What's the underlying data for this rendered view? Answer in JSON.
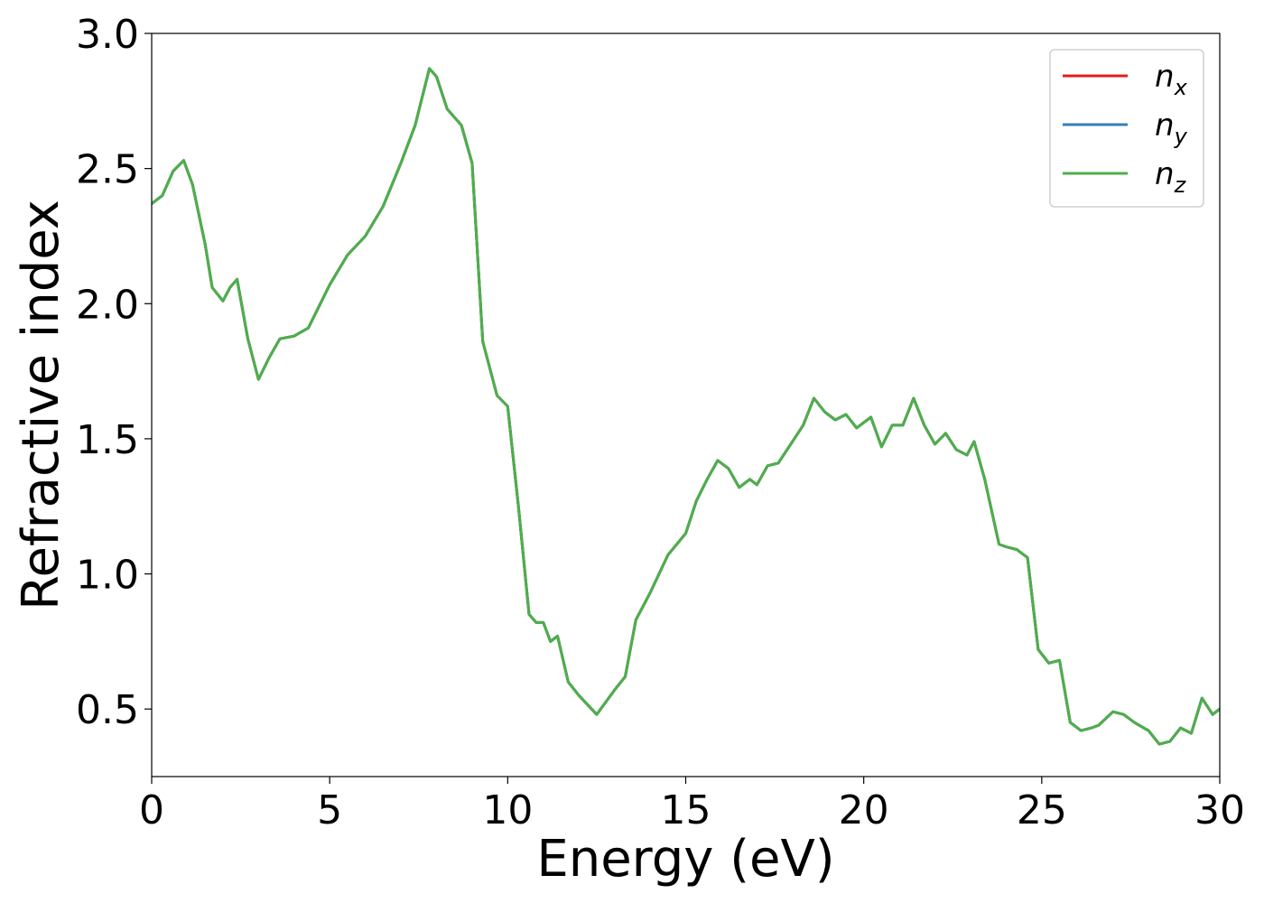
{
  "chart_data": {
    "type": "line",
    "title": "",
    "xlabel": "Energy (eV)",
    "ylabel": "Refractive index",
    "xlim": [
      0,
      30
    ],
    "ylim": [
      0.25,
      3.0
    ],
    "xticks": [
      0,
      5,
      10,
      15,
      20,
      25,
      30
    ],
    "xtick_labels": [
      "0",
      "5",
      "10",
      "15",
      "20",
      "25",
      "30"
    ],
    "yticks": [
      0.5,
      1.0,
      1.5,
      2.0,
      2.5,
      3.0
    ],
    "ytick_labels": [
      "0.5",
      "1.0",
      "1.5",
      "2.0",
      "2.5",
      "3.0"
    ],
    "grid": false,
    "legend_position": "top-right",
    "x": [
      0,
      0.3,
      0.6,
      0.9,
      1.15,
      1.5,
      1.7,
      2.0,
      2.2,
      2.4,
      2.7,
      3.0,
      3.3,
      3.6,
      4.0,
      4.4,
      5.0,
      5.5,
      6.0,
      6.5,
      7.0,
      7.4,
      7.8,
      8.0,
      8.3,
      8.7,
      9.0,
      9.3,
      9.7,
      10.0,
      10.3,
      10.6,
      10.8,
      11.0,
      11.2,
      11.4,
      11.7,
      12.0,
      12.5,
      13.0,
      13.3,
      13.6,
      14.0,
      14.5,
      15.0,
      15.3,
      15.6,
      15.9,
      16.2,
      16.5,
      16.8,
      17.0,
      17.3,
      17.6,
      18.0,
      18.3,
      18.6,
      18.9,
      19.2,
      19.5,
      19.8,
      20.2,
      20.5,
      20.8,
      21.1,
      21.4,
      21.7,
      22.0,
      22.3,
      22.6,
      22.9,
      23.1,
      23.4,
      23.8,
      24.0,
      24.3,
      24.6,
      24.9,
      25.2,
      25.5,
      25.8,
      26.1,
      26.4,
      26.6,
      27.0,
      27.3,
      27.6,
      28.0,
      28.3,
      28.6,
      28.9,
      29.2,
      29.5,
      29.8,
      30.0
    ],
    "series": [
      {
        "name": "n_x",
        "color": "#e41a1c",
        "values": [
          2.37,
          2.4,
          2.49,
          2.53,
          2.44,
          2.22,
          2.06,
          2.01,
          2.06,
          2.09,
          1.87,
          1.72,
          1.8,
          1.87,
          1.88,
          1.91,
          2.07,
          2.18,
          2.25,
          2.36,
          2.52,
          2.66,
          2.87,
          2.84,
          2.72,
          2.66,
          2.52,
          1.86,
          1.66,
          1.62,
          1.25,
          0.85,
          0.82,
          0.82,
          0.75,
          0.77,
          0.6,
          0.55,
          0.48,
          0.57,
          0.62,
          0.83,
          0.93,
          1.07,
          1.15,
          1.27,
          1.35,
          1.42,
          1.39,
          1.32,
          1.35,
          1.33,
          1.4,
          1.41,
          1.49,
          1.55,
          1.65,
          1.6,
          1.57,
          1.59,
          1.54,
          1.58,
          1.47,
          1.55,
          1.55,
          1.65,
          1.55,
          1.48,
          1.52,
          1.46,
          1.44,
          1.49,
          1.35,
          1.11,
          1.1,
          1.09,
          1.06,
          0.72,
          0.67,
          0.68,
          0.45,
          0.42,
          0.43,
          0.44,
          0.49,
          0.48,
          0.45,
          0.42,
          0.37,
          0.38,
          0.43,
          0.41,
          0.54,
          0.48,
          0.5
        ]
      },
      {
        "name": "n_y",
        "color": "#377eb8",
        "values": [
          2.37,
          2.4,
          2.49,
          2.53,
          2.44,
          2.22,
          2.06,
          2.01,
          2.06,
          2.09,
          1.87,
          1.72,
          1.8,
          1.87,
          1.88,
          1.91,
          2.07,
          2.18,
          2.25,
          2.36,
          2.52,
          2.66,
          2.87,
          2.84,
          2.72,
          2.66,
          2.52,
          1.86,
          1.66,
          1.62,
          1.25,
          0.85,
          0.82,
          0.82,
          0.75,
          0.77,
          0.6,
          0.55,
          0.48,
          0.57,
          0.62,
          0.83,
          0.93,
          1.07,
          1.15,
          1.27,
          1.35,
          1.42,
          1.39,
          1.32,
          1.35,
          1.33,
          1.4,
          1.41,
          1.49,
          1.55,
          1.65,
          1.6,
          1.57,
          1.59,
          1.54,
          1.58,
          1.47,
          1.55,
          1.55,
          1.65,
          1.55,
          1.48,
          1.52,
          1.46,
          1.44,
          1.49,
          1.35,
          1.11,
          1.1,
          1.09,
          1.06,
          0.72,
          0.67,
          0.68,
          0.45,
          0.42,
          0.43,
          0.44,
          0.49,
          0.48,
          0.45,
          0.42,
          0.37,
          0.38,
          0.43,
          0.41,
          0.54,
          0.48,
          0.5
        ]
      },
      {
        "name": "n_z",
        "color": "#4daf4a",
        "values": [
          2.37,
          2.4,
          2.49,
          2.53,
          2.44,
          2.22,
          2.06,
          2.01,
          2.06,
          2.09,
          1.87,
          1.72,
          1.8,
          1.87,
          1.88,
          1.91,
          2.07,
          2.18,
          2.25,
          2.36,
          2.52,
          2.66,
          2.87,
          2.84,
          2.72,
          2.66,
          2.52,
          1.86,
          1.66,
          1.62,
          1.25,
          0.85,
          0.82,
          0.82,
          0.75,
          0.77,
          0.6,
          0.55,
          0.48,
          0.57,
          0.62,
          0.83,
          0.93,
          1.07,
          1.15,
          1.27,
          1.35,
          1.42,
          1.39,
          1.32,
          1.35,
          1.33,
          1.4,
          1.41,
          1.49,
          1.55,
          1.65,
          1.6,
          1.57,
          1.59,
          1.54,
          1.58,
          1.47,
          1.55,
          1.55,
          1.65,
          1.55,
          1.48,
          1.52,
          1.46,
          1.44,
          1.49,
          1.35,
          1.11,
          1.1,
          1.09,
          1.06,
          0.72,
          0.67,
          0.68,
          0.45,
          0.42,
          0.43,
          0.44,
          0.49,
          0.48,
          0.45,
          0.42,
          0.37,
          0.38,
          0.43,
          0.41,
          0.54,
          0.48,
          0.5
        ]
      }
    ]
  }
}
